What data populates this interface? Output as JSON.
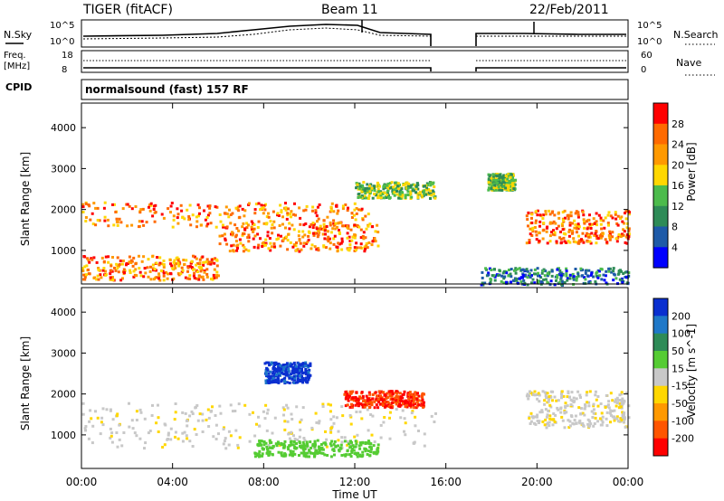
{
  "header": {
    "title": "TIGER (fitACF)",
    "beam": "Beam 11",
    "date": "22/Feb/2011"
  },
  "status_panels": {
    "nsky_label": "N.Sky",
    "nsearch_label": "N.Search",
    "nsky_ticks": [
      "10^5",
      "10^0"
    ],
    "nsky_right_ticks": [
      "10^5",
      "10^0"
    ],
    "freq_label": "Freq.",
    "freq_unit": "[MHz]",
    "freq_ticks": [
      "18",
      "8"
    ],
    "nave_label": "Nave",
    "nave_ticks": [
      "60",
      "0"
    ],
    "cpid_label": "CPID",
    "cpid_value": "normalsound (fast) 157 RF"
  },
  "chart_data": [
    {
      "type": "heatmap",
      "name": "power",
      "ylabel": "Slant Range [km]",
      "xlabel": "",
      "ylim": [
        180,
        4600
      ],
      "xlim": [
        0,
        24
      ],
      "yticks": [
        "1000",
        "2000",
        "3000",
        "4000"
      ],
      "xticks": [
        "00:00",
        "04:00",
        "08:00",
        "12:00",
        "16:00",
        "20:00",
        "00:00"
      ],
      "data_gap": [
        15.5,
        17.5
      ],
      "colorbar": {
        "label": "Power [dB]",
        "ticks": [
          "4",
          "8",
          "12",
          "16",
          "20",
          "24",
          "28"
        ],
        "colors": [
          "#0000ff",
          "#1e5aa8",
          "#2e8b57",
          "#4cbb4c",
          "#ffd700",
          "#ff9900",
          "#ff6a00",
          "#ff0000"
        ]
      },
      "regions": [
        {
          "t": [
            0,
            12.6
          ],
          "r": [
            1600,
            2200
          ],
          "level": "high"
        },
        {
          "t": [
            0,
            6
          ],
          "r": [
            300,
            900
          ],
          "level": "high"
        },
        {
          "t": [
            6,
            13
          ],
          "r": [
            1000,
            1700
          ],
          "level": "high"
        },
        {
          "t": [
            12,
            15.5
          ],
          "r": [
            2300,
            2700
          ],
          "level": "mid"
        },
        {
          "t": [
            17.8,
            19
          ],
          "r": [
            2500,
            2900
          ],
          "level": "mid"
        },
        {
          "t": [
            19.5,
            24
          ],
          "r": [
            1200,
            2000
          ],
          "level": "high"
        },
        {
          "t": [
            17.5,
            24
          ],
          "r": [
            180,
            600
          ],
          "level": "low"
        }
      ]
    },
    {
      "type": "heatmap",
      "name": "velocity",
      "ylabel": "Slant Range [km]",
      "xlabel": "Time UT",
      "ylim": [
        180,
        4600
      ],
      "xlim": [
        0,
        24
      ],
      "yticks": [
        "1000",
        "2000",
        "3000",
        "4000"
      ],
      "xticks": [
        "00:00",
        "04:00",
        "08:00",
        "12:00",
        "16:00",
        "20:00",
        "00:00"
      ],
      "data_gap": [
        15.5,
        17.5
      ],
      "colorbar": {
        "label": "Velocity [m s^-1]",
        "ticks": [
          "200",
          "100",
          "50",
          "15",
          "-15",
          "-50",
          "-100",
          "-200"
        ],
        "colors": [
          "#0a2fd0",
          "#1f78c8",
          "#2e8b57",
          "#55cc33",
          "#c8c8c8",
          "#ffd700",
          "#ff9900",
          "#ff5500",
          "#ff0000"
        ]
      },
      "regions": [
        {
          "t": [
            0,
            15.5
          ],
          "r": [
            700,
            1800
          ],
          "level": "near-zero"
        },
        {
          "t": [
            8,
            10
          ],
          "r": [
            2300,
            2800
          ],
          "level": "toward-positive"
        },
        {
          "t": [
            11.5,
            15
          ],
          "r": [
            1700,
            2100
          ],
          "level": "away-negative"
        },
        {
          "t": [
            7.5,
            13
          ],
          "r": [
            500,
            900
          ],
          "level": "positive-low"
        },
        {
          "t": [
            19.5,
            24
          ],
          "r": [
            1200,
            2100
          ],
          "level": "near-zero"
        }
      ]
    }
  ]
}
